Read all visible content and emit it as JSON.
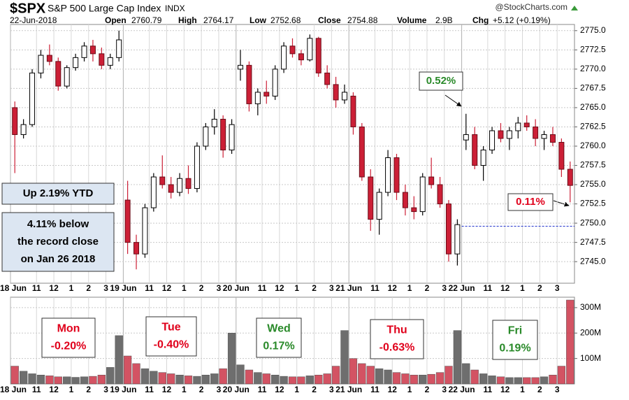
{
  "header": {
    "symbol": "$SPX",
    "name": "S&P 500 Large Cap Index",
    "exchange": "INDX",
    "source": "@StockCharts.com",
    "date": "22-Jun-2018",
    "fields": [
      {
        "label": "Open",
        "value": 2760.79
      },
      {
        "label": "High",
        "value": 2764.17
      },
      {
        "label": "Low",
        "value": 2752.68
      },
      {
        "label": "Close",
        "value": 2754.88
      },
      {
        "label": "Volume",
        "value": "2.9B"
      },
      {
        "label": "Chg",
        "value": "+5.12 (+0.19%)"
      }
    ]
  },
  "chart_data": [
    {
      "type": "candlestick",
      "categories": [
        "18 Jun",
        null,
        null,
        "11",
        null,
        "12",
        null,
        "1",
        null,
        "2",
        null,
        "3",
        null,
        "19 Jun",
        null,
        null,
        "11",
        null,
        "12",
        null,
        "1",
        null,
        "2",
        null,
        "3",
        null,
        "20 Jun",
        null,
        null,
        "11",
        null,
        "12",
        null,
        "1",
        null,
        "2",
        null,
        "3",
        null,
        "21 Jun",
        null,
        null,
        "11",
        null,
        "12",
        null,
        "1",
        null,
        "2",
        null,
        "3",
        null,
        "22 Jun",
        null,
        null,
        "11",
        null,
        "12",
        null,
        "1",
        null,
        "2",
        null,
        "3",
        null
      ],
      "open": [
        2765,
        2761.5,
        2762.8,
        2769.5,
        2771.8,
        2771,
        2767.8,
        2770.2,
        2771.5,
        2773,
        2772,
        2770.5,
        2771.5,
        2753,
        2747.5,
        2746,
        2752,
        2756,
        2755,
        2754,
        2755.8,
        2754.5,
        2760,
        2762.5,
        2763.5,
        2759.5,
        2770,
        2770.5,
        2765.5,
        2767,
        2766.5,
        2770,
        2773,
        2772,
        2771.2,
        2774,
        2769.5,
        2768,
        2766,
        2766.5,
        2762.5,
        2756,
        2750.5,
        2754,
        2758.5,
        2754,
        2752,
        2751.5,
        2756,
        2755,
        2752.5,
        2746,
        2760.8,
        2761.5,
        2757.5,
        2759.5,
        2762,
        2761,
        2762,
        2763,
        2762.5,
        2761,
        2761.5,
        2760.5,
        2757
      ],
      "high": [
        2765.8,
        2763.5,
        2770,
        2772.5,
        2773.2,
        2771.5,
        2770.5,
        2772,
        2773.5,
        2773.8,
        2772.8,
        2772,
        2775,
        2755.5,
        2748.5,
        2752.5,
        2756.5,
        2758.8,
        2756,
        2756.5,
        2757.5,
        2760.5,
        2763,
        2764.8,
        2764,
        2763.5,
        2772.5,
        2771,
        2767.5,
        2768.5,
        2770.5,
        2773.5,
        2774,
        2772.5,
        2774.5,
        2774.2,
        2770.5,
        2769,
        2768,
        2767,
        2763,
        2757,
        2754.5,
        2759.5,
        2759,
        2755,
        2753.5,
        2756.5,
        2758.5,
        2756,
        2753,
        2750.5,
        2764.2,
        2762.5,
        2760,
        2762.5,
        2763,
        2762.5,
        2763.8,
        2764,
        2763.5,
        2762,
        2762.5,
        2761,
        2758
      ],
      "low": [
        2756.5,
        2761,
        2762.5,
        2768.8,
        2770.5,
        2767.2,
        2767.5,
        2769.8,
        2771,
        2771,
        2770,
        2770,
        2771,
        2746,
        2744,
        2745.5,
        2751.5,
        2754.5,
        2753.2,
        2753.5,
        2753.8,
        2754,
        2759.5,
        2761.5,
        2758.5,
        2759,
        2768.5,
        2764.5,
        2764,
        2765.5,
        2766,
        2769.5,
        2771.5,
        2770.5,
        2771,
        2769,
        2767.5,
        2765,
        2765.5,
        2761.5,
        2755.5,
        2749,
        2748.5,
        2753.5,
        2753,
        2751,
        2750.5,
        2751,
        2754.5,
        2752,
        2745,
        2744.5,
        2759.5,
        2757,
        2755.5,
        2759,
        2760.5,
        2759.5,
        2761,
        2762,
        2760,
        2759.5,
        2760,
        2756,
        2752.7
      ],
      "close": [
        2761.5,
        2762.8,
        2769.5,
        2771.8,
        2771,
        2767.8,
        2770.2,
        2771.5,
        2773,
        2772,
        2770.5,
        2771.5,
        2773.8,
        2747.5,
        2746,
        2752,
        2756,
        2755,
        2754,
        2755.8,
        2754.5,
        2760,
        2762.5,
        2763.5,
        2759.5,
        2762.8,
        2770.5,
        2765.5,
        2767,
        2766.5,
        2770,
        2773,
        2772,
        2771.2,
        2774,
        2769.5,
        2768,
        2766,
        2767,
        2762.5,
        2756,
        2750.5,
        2754,
        2758.5,
        2754,
        2752,
        2751.5,
        2756,
        2755,
        2752.5,
        2746,
        2749.8,
        2761.5,
        2757.5,
        2759.5,
        2762,
        2761,
        2762,
        2763,
        2762.5,
        2761,
        2761.5,
        2760.5,
        2757,
        2754.9
      ],
      "up_color": "#000000",
      "down_color": "#cc1f36",
      "ylim": [
        2742.2,
        2775.8
      ],
      "yticks": [
        {
          "value": 2745,
          "label": "2745.0"
        },
        {
          "value": 2747.5,
          "label": "2747.5"
        },
        {
          "value": 2750,
          "label": "2750.0"
        },
        {
          "value": 2752.5,
          "label": "2752.5"
        },
        {
          "value": 2755,
          "label": "2755.0"
        },
        {
          "value": 2757.5,
          "label": "2757.5"
        },
        {
          "value": 2760,
          "label": "2760.0"
        },
        {
          "value": 2762.5,
          "label": "2762.5"
        },
        {
          "value": 2765,
          "label": "2765.0"
        },
        {
          "value": 2767.5,
          "label": "2767.5"
        },
        {
          "value": 2770,
          "label": "2770.0"
        },
        {
          "value": 2772.5,
          "label": "2772.5"
        },
        {
          "value": 2775,
          "label": "2775.0"
        }
      ],
      "grid": true,
      "reference_line": {
        "value": 2749.6,
        "color": "#2233cc"
      },
      "annotations": [
        {
          "lines": [
            "Up 2.19% YTD"
          ],
          "color": "#000000"
        },
        {
          "lines": [
            "4.11% below",
            "the record close",
            "on Jan 26 2018"
          ],
          "color": "#000000"
        },
        {
          "lines": [
            "0.52%"
          ],
          "color": "#2a8a2a"
        },
        {
          "lines": [
            "0.11%"
          ],
          "color": "#e0001b"
        }
      ]
    },
    {
      "type": "bar",
      "categories": [
        "18 Jun",
        null,
        null,
        "11",
        null,
        "12",
        null,
        "1",
        null,
        "2",
        null,
        "3",
        null,
        "19 Jun",
        null,
        null,
        "11",
        null,
        "12",
        null,
        "1",
        null,
        "2",
        null,
        "3",
        null,
        "20 Jun",
        null,
        null,
        "11",
        null,
        "12",
        null,
        "1",
        null,
        "2",
        null,
        "3",
        null,
        "21 Jun",
        null,
        null,
        "11",
        null,
        "12",
        null,
        "1",
        null,
        "2",
        null,
        "3",
        null,
        "22 Jun",
        null,
        null,
        "11",
        null,
        "12",
        null,
        "1",
        null,
        "2",
        null,
        "3",
        null
      ],
      "values": [
        70,
        50,
        40,
        35,
        32,
        28,
        28,
        26,
        28,
        30,
        35,
        65,
        190,
        110,
        80,
        60,
        50,
        45,
        40,
        35,
        32,
        30,
        35,
        40,
        60,
        200,
        75,
        55,
        45,
        40,
        35,
        30,
        28,
        28,
        32,
        35,
        40,
        70,
        210,
        100,
        80,
        70,
        60,
        55,
        45,
        40,
        35,
        35,
        38,
        45,
        70,
        210,
        80,
        55,
        40,
        32,
        28,
        25,
        25,
        25,
        25,
        28,
        35,
        70,
        330
      ],
      "up_color": "#6e6e6e",
      "down_color": "#c8283c",
      "ylim": [
        0,
        341
      ],
      "yticks": [
        {
          "value": 100,
          "label": "100M"
        },
        {
          "value": 200,
          "label": "200M"
        },
        {
          "value": 300,
          "label": "300M"
        }
      ],
      "grid": true,
      "annotations": [
        {
          "lines": [
            "Mon",
            "-0.20%"
          ],
          "color": "#e0001b"
        },
        {
          "lines": [
            "Tue",
            "-0.40%"
          ],
          "color": "#e0001b"
        },
        {
          "lines": [
            "Wed",
            "0.17%"
          ],
          "color": "#2a8a2a"
        },
        {
          "lines": [
            "Thu",
            "-0.63%"
          ],
          "color": "#e0001b"
        },
        {
          "lines": [
            "Fri",
            "0.19%"
          ],
          "color": "#2a8a2a"
        }
      ]
    }
  ]
}
